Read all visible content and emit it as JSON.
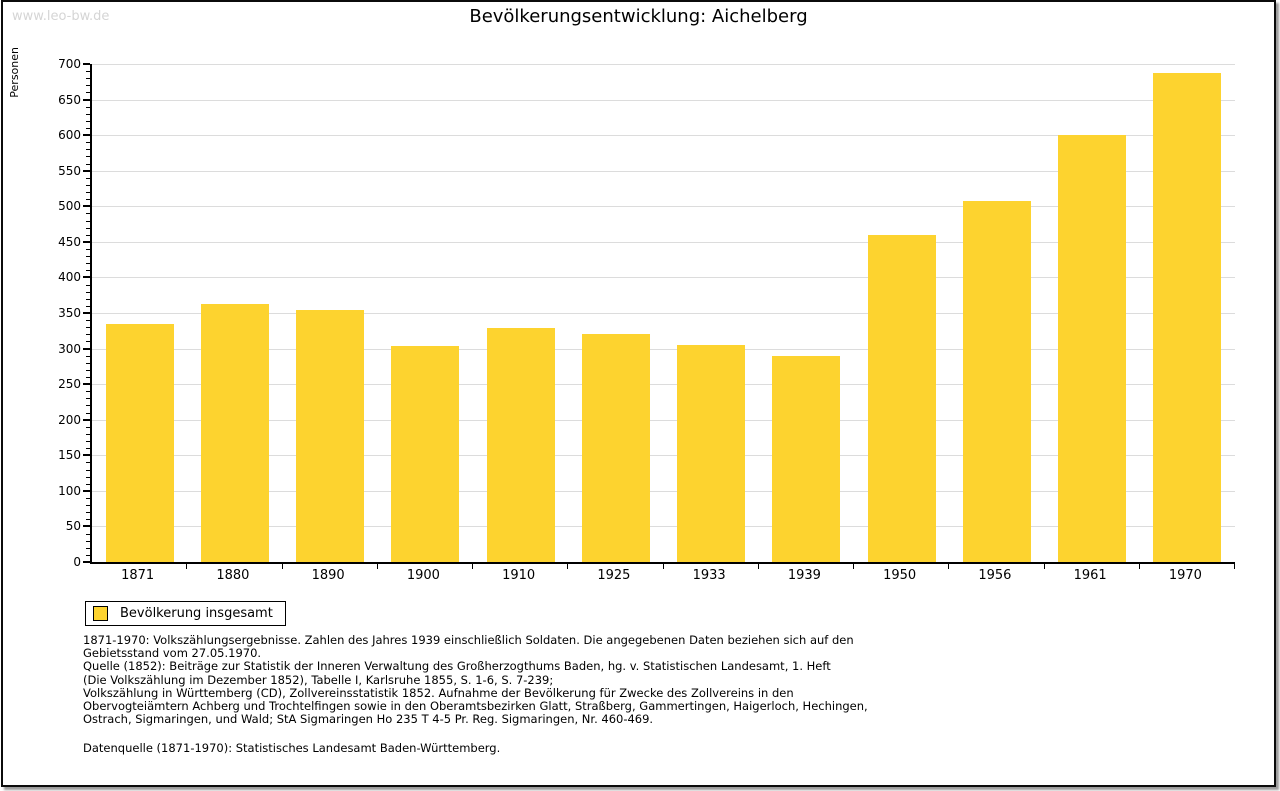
{
  "page": {
    "watermark": "www.leo-bw.de"
  },
  "chart_data": {
    "type": "bar",
    "title": "Bevölkerungsentwicklung: Aichelberg",
    "ylabel": "Personen",
    "xlabel": "",
    "categories": [
      "1871",
      "1880",
      "1890",
      "1900",
      "1910",
      "1925",
      "1933",
      "1939",
      "1950",
      "1956",
      "1961",
      "1970"
    ],
    "values": [
      335,
      362,
      354,
      303,
      329,
      321,
      305,
      289,
      460,
      507,
      600,
      688
    ],
    "ylim": [
      0,
      700
    ],
    "ytick_step": 50,
    "yminor_step": 10,
    "grid": "horizontal-major",
    "legend": [
      {
        "label": "Bevölkerung insgesamt",
        "swatch_color": "#FDD32F",
        "position": "bottom-left"
      }
    ],
    "colors": {
      "bar": "#FDD32F",
      "grid": "#DCDCDC",
      "axis": "#000000",
      "watermark": "#D5D5D5",
      "text": "#000000"
    }
  },
  "footer": {
    "lines": [
      "1871-1970: Volkszählungsergebnisse. Zahlen des Jahres 1939 einschließlich Soldaten. Die angegebenen Daten beziehen sich auf den",
      "Gebietsstand vom 27.05.1970.",
      "Quelle (1852): Beiträge zur Statistik der Inneren Verwaltung des Großherzogthums Baden, hg. v. Statistischen Landesamt, 1. Heft",
      "(Die Volkszählung im Dezember 1852), Tabelle I, Karlsruhe 1855, S. 1-6, S. 7-239;",
      "Volkszählung in Württemberg (CD), Zollvereinsstatistik 1852. Aufnahme der Bevölkerung für Zwecke des Zollvereins in den",
      "Obervogteiämtern Achberg und Trochtelfingen sowie in den Oberamtsbezirken Glatt, Straßberg, Gammertingen, Haigerloch, Hechingen,",
      "Ostrach, Sigmaringen, und Wald; StA Sigmaringen Ho 235 T 4-5 Pr. Reg. Sigmaringen, Nr. 460-469."
    ],
    "datasource": "Datenquelle (1871-1970): Statistisches Landesamt Baden-Württemberg."
  }
}
